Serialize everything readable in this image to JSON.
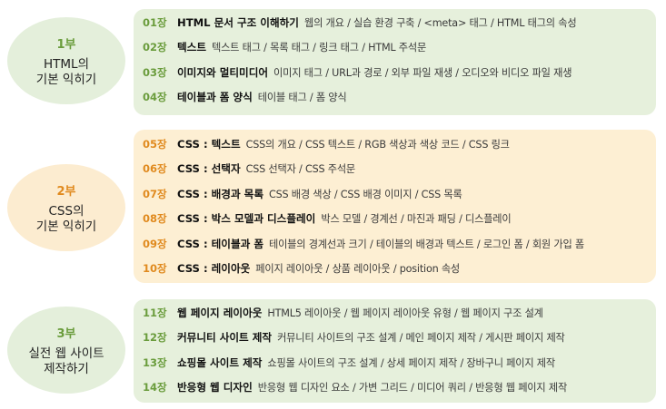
{
  "parts": [
    {
      "num": "1부",
      "name": "HTML의\n기본 익히기",
      "chapters": [
        {
          "ch": "01장",
          "title": "HTML 문서 구조 이해하기",
          "detail": "웹의 개요 / 실습 환경 구축 / <meta> 태그 / HTML 태그의 속성"
        },
        {
          "ch": "02장",
          "title": "텍스트",
          "detail": "텍스트 태그 / 목록 태그 / 링크 태그 / HTML 주석문"
        },
        {
          "ch": "03장",
          "title": "이미지와 멀티미디어",
          "detail": "이미지 태그 / URL과 경로 / 외부 파일 재생 / 오디오와 비디오 파일 재생"
        },
        {
          "ch": "04장",
          "title": "테이블과 폼 양식",
          "detail": "테이블 태그 / 폼 양식"
        }
      ]
    },
    {
      "num": "2부",
      "name": "CSS의\n기본 익히기",
      "chapters": [
        {
          "ch": "05장",
          "title": "CSS : 텍스트",
          "detail": "CSS의 개요 / CSS 텍스트 / RGB 색상과 색상 코드 / CSS 링크"
        },
        {
          "ch": "06장",
          "title": "CSS : 선택자",
          "detail": "CSS 선택자 / CSS 주석문"
        },
        {
          "ch": "07장",
          "title": "CSS : 배경과 목록",
          "detail": "CSS 배경 색상 / CSS 배경 이미지 / CSS 목록"
        },
        {
          "ch": "08장",
          "title": "CSS : 박스 모델과 디스플레이",
          "detail": "박스 모델 / 경계선 / 마진과 패딩 / 디스플레이"
        },
        {
          "ch": "09장",
          "title": "CSS : 테이블과 폼",
          "detail": "테이블의 경계선과 크기 / 테이블의 배경과 텍스트 / 로그인 폼 / 회원 가입 폼"
        },
        {
          "ch": "10장",
          "title": "CSS : 레이아웃",
          "detail": "페이지 레이아웃 / 상품 레이아웃 / position 속성"
        }
      ]
    },
    {
      "num": "3부",
      "name": "실전 웹 사이트\n제작하기",
      "chapters": [
        {
          "ch": "11장",
          "title": "웹 페이지 레이아웃",
          "detail": "HTML5 레이아웃 / 웹 페이지 레이아웃 유형 / 웹 페이지 구조 설계"
        },
        {
          "ch": "12장",
          "title": "커뮤니티 사이트 제작",
          "detail": "커뮤니티 사이트의 구조 설계 / 메인 페이지 제작 / 게시판 페이지 제작"
        },
        {
          "ch": "13장",
          "title": "쇼핑몰 사이트 제작",
          "detail": "쇼핑몰 사이트의 구조 설계 / 상세 페이지 제작 / 장바구니 페이지 제작"
        },
        {
          "ch": "14장",
          "title": "반응형 웹 디자인",
          "detail": "반응형 웹 디자인 요소 / 가변 그리드 / 미디어 쿼리 / 반응형 웹 페이지 제작"
        }
      ]
    }
  ]
}
